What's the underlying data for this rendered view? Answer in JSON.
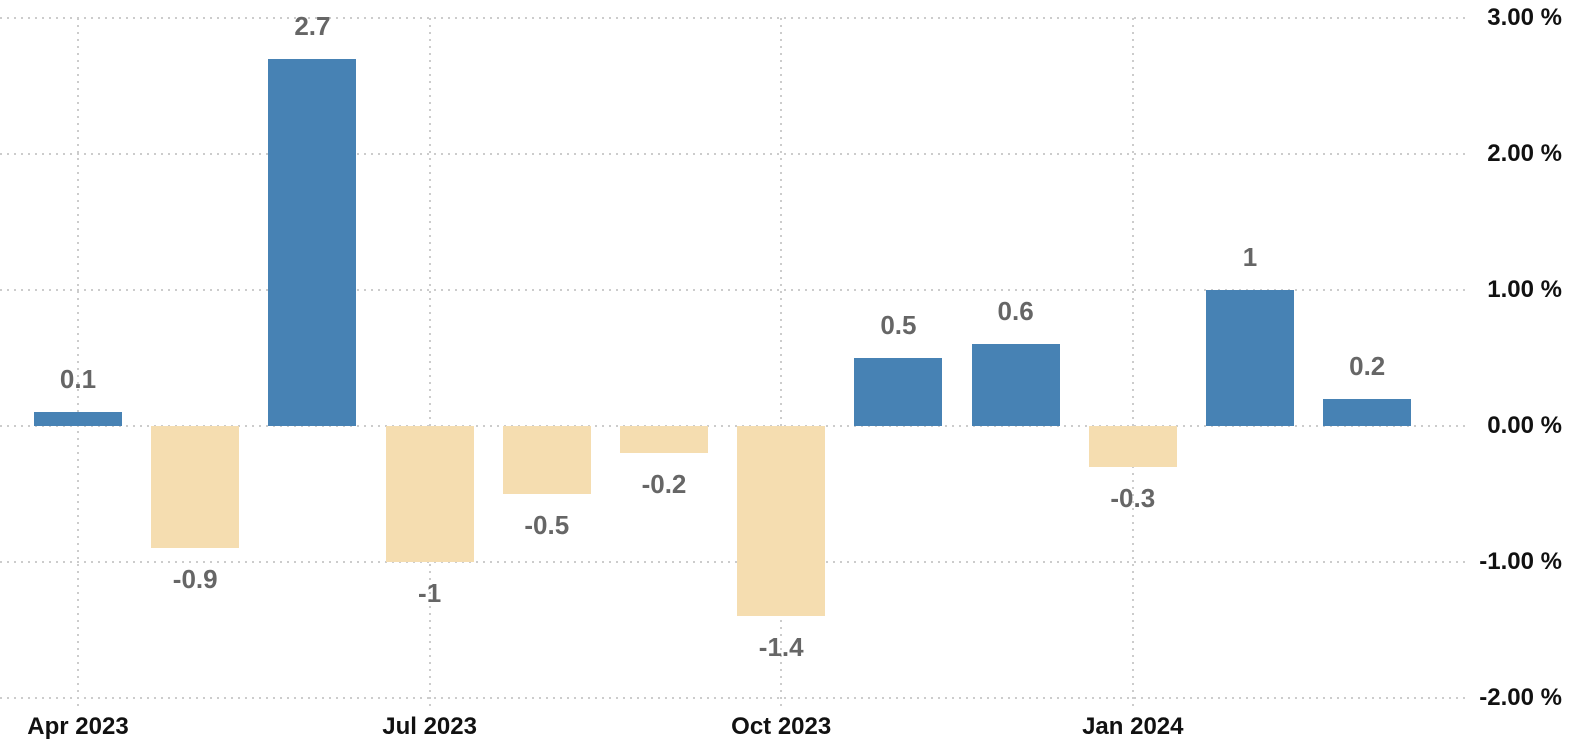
{
  "chart_data": {
    "type": "bar",
    "title": "",
    "xlabel": "",
    "ylabel": "",
    "unit": "%",
    "grid": "dotted",
    "legend": "none",
    "ylim": [
      -2.4,
      3.15
    ],
    "y_axis_side": "right",
    "bars": [
      {
        "label": "0.1",
        "value": 0.1
      },
      {
        "label": "-0.9",
        "value": -0.9
      },
      {
        "label": "2.7",
        "value": 2.7
      },
      {
        "label": "-1",
        "value": -1
      },
      {
        "label": "-0.5",
        "value": -0.5
      },
      {
        "label": "-0.2",
        "value": -0.2
      },
      {
        "label": "-1.4",
        "value": -1.4
      },
      {
        "label": "0.5",
        "value": 0.5
      },
      {
        "label": "0.6",
        "value": 0.6
      },
      {
        "label": "-0.3",
        "value": -0.3
      },
      {
        "label": "1",
        "value": 1
      },
      {
        "label": "0.2",
        "value": 0.2
      }
    ],
    "x_ticks": [
      {
        "label": "Apr 2023",
        "bar_index": 0
      },
      {
        "label": "Jul 2023",
        "bar_index": 3
      },
      {
        "label": "Oct 2023",
        "bar_index": 6
      },
      {
        "label": "Jan 2024",
        "bar_index": 9
      }
    ],
    "y_ticks": [
      {
        "value": 3,
        "label": "3.00 %"
      },
      {
        "value": 2,
        "label": "2.00 %"
      },
      {
        "value": 1,
        "label": "1.00 %"
      },
      {
        "value": 0,
        "label": "0.00 %"
      },
      {
        "value": -1,
        "label": "-1.00 %"
      },
      {
        "value": -2,
        "label": "-2.00 %"
      }
    ],
    "colors": {
      "positive_bar": "#4782b4",
      "negative_bar": "#f5ddb0",
      "gridline": "#cccccc",
      "data_label": "#666666",
      "axis_label": "#111111",
      "background": "#ffffff"
    }
  }
}
